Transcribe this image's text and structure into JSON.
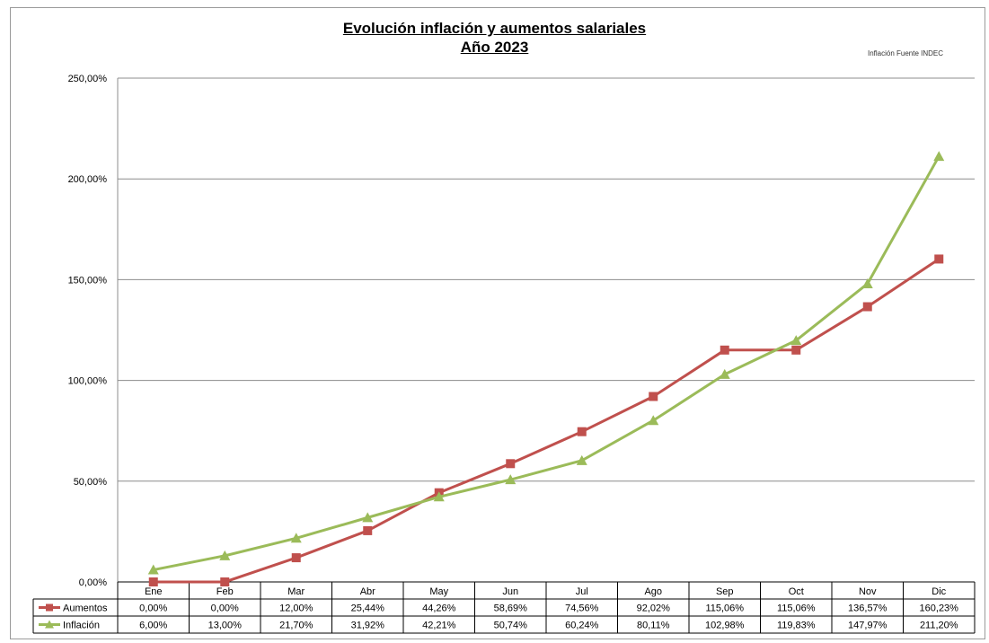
{
  "chart_data": {
    "type": "line",
    "title": "Evolución inflación y aumentos salariales",
    "subtitle": "Año 2023",
    "note": "Inflación Fuente INDEC",
    "categories": [
      "Ene",
      "Feb",
      "Mar",
      "Abr",
      "May",
      "Jun",
      "Jul",
      "Ago",
      "Sep",
      "Oct",
      "Nov",
      "Dic"
    ],
    "ylim": [
      0,
      250
    ],
    "yticks": [
      0,
      50,
      100,
      150,
      200,
      250
    ],
    "ytick_labels": [
      "0,00%",
      "50,00%",
      "100,00%",
      "150,00%",
      "200,00%",
      "250,00%"
    ],
    "grid": true,
    "legend": "data-table-left",
    "series": [
      {
        "name": "Aumentos",
        "color": "#c0504d",
        "marker": "square",
        "values": [
          0.0,
          0.0,
          12.0,
          25.44,
          44.26,
          58.69,
          74.56,
          92.02,
          115.06,
          115.06,
          136.57,
          160.23
        ],
        "labels": [
          "0,00%",
          "0,00%",
          "12,00%",
          "25,44%",
          "44,26%",
          "58,69%",
          "74,56%",
          "92,02%",
          "115,06%",
          "115,06%",
          "136,57%",
          "160,23%"
        ]
      },
      {
        "name": "Inflación",
        "color": "#9bbb59",
        "marker": "triangle",
        "values": [
          6.0,
          13.0,
          21.7,
          31.92,
          42.21,
          50.74,
          60.24,
          80.11,
          102.98,
          119.83,
          147.97,
          211.2
        ],
        "labels": [
          "6,00%",
          "13,00%",
          "21,70%",
          "31,92%",
          "42,21%",
          "50,74%",
          "60,24%",
          "80,11%",
          "102,98%",
          "119,83%",
          "147,97%",
          "211,20%"
        ]
      }
    ]
  }
}
